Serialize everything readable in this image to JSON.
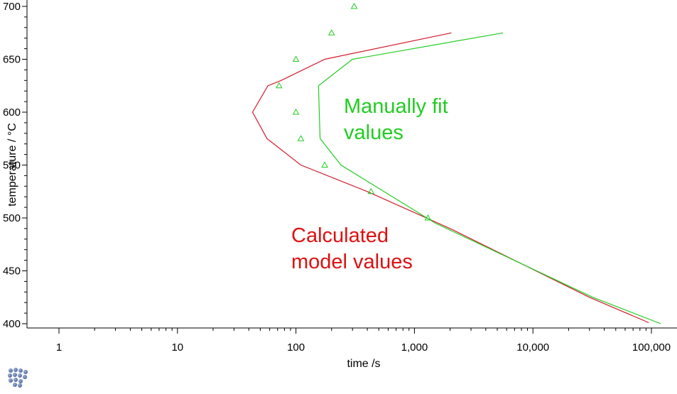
{
  "chart_data": {
    "type": "line",
    "title": "",
    "xlabel": "time /s",
    "ylabel": "temperature / °C",
    "xscale": "log",
    "xlim": [
      1,
      120000
    ],
    "ylim": [
      398,
      702
    ],
    "x_tick_values": [
      1,
      10,
      100,
      1000,
      10000,
      100000
    ],
    "x_tick_labels": [
      "1",
      "10",
      "100",
      "1,000",
      "10,000",
      "100,000"
    ],
    "y_tick_values": [
      400,
      450,
      500,
      550,
      600,
      650,
      700
    ],
    "y_tick_labels": [
      "400",
      "450",
      "500",
      "550",
      "600",
      "650",
      "700"
    ],
    "grid": false,
    "legend": "none",
    "series": [
      {
        "color": "#d21c2c",
        "kind": "line",
        "x": [
          95000,
          30000,
          2000,
          400,
          110,
          57,
          43,
          58,
          75,
          175,
          2050
        ],
        "y": [
          401,
          425,
          490,
          525,
          550,
          575,
          600,
          625,
          630,
          650,
          675
        ]
      },
      {
        "color": "#22cc22",
        "kind": "line",
        "x": [
          120000,
          32000,
          1500,
          240,
          160,
          155,
          300,
          5600
        ],
        "y": [
          400,
          425,
          495,
          550,
          575,
          625,
          650,
          675
        ]
      },
      {
        "color": "#22cc22",
        "kind": "points",
        "marker": "triangle",
        "x": [
          310,
          200,
          100,
          72,
          100,
          110,
          175,
          430,
          1300
        ],
        "y": [
          700,
          675,
          650,
          625,
          600,
          575,
          550,
          525,
          500
        ]
      }
    ],
    "annotations": [
      {
        "lines": [
          "Manually fit",
          "values"
        ],
        "color": "#22cc22"
      },
      {
        "lines": [
          "Calculated",
          "model values"
        ],
        "color": "#dd1111"
      }
    ]
  }
}
